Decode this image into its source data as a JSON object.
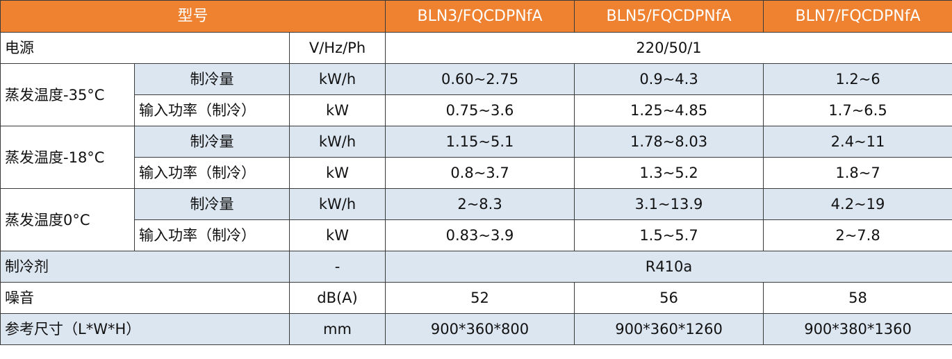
{
  "header": {
    "model_label": "型号",
    "models": [
      "BLN3/FQCDPNfA",
      "BLN5/FQCDPNfA",
      "BLN7/FQCDPNfA"
    ]
  },
  "power": {
    "label": "电源",
    "unit": "V/Hz/Ph",
    "value": "220/50/1"
  },
  "groups": [
    {
      "label": "蒸发温度-35°C",
      "cooling": {
        "label": "制冷量",
        "unit": "kW/h",
        "values": [
          "0.60~2.75",
          "0.9~4.3",
          "1.2~6"
        ]
      },
      "input": {
        "label": "输入功率（制冷）",
        "unit": "kW",
        "values": [
          "0.75~3.6",
          "1.25~4.85",
          "1.7~6.5"
        ]
      }
    },
    {
      "label": "蒸发温度-18°C",
      "cooling": {
        "label": "制冷量",
        "unit": "kW/h",
        "values": [
          "1.15~5.1",
          "1.78~8.03",
          "2.4~11"
        ]
      },
      "input": {
        "label": "输入功率（制冷）",
        "unit": "kW",
        "values": [
          "0.8~3.7",
          "1.3~5.2",
          "1.8~7"
        ]
      }
    },
    {
      "label": "蒸发温度0°C",
      "cooling": {
        "label": "制冷量",
        "unit": "kW/h",
        "values": [
          "2~8.3",
          "3.1~13.9",
          "4.2~19"
        ]
      },
      "input": {
        "label": "输入功率（制冷）",
        "unit": "kW",
        "values": [
          "0.83~3.9",
          "1.5~5.7",
          "2~7.8"
        ]
      }
    }
  ],
  "refrigerant": {
    "label": "制冷剂",
    "unit": "-",
    "value": "R410a"
  },
  "noise": {
    "label": "噪音",
    "unit": "dB(A)",
    "values": [
      "52",
      "56",
      "58"
    ]
  },
  "dimensions": {
    "label": "参考尺寸（L*W*H）",
    "unit": "mm",
    "values": [
      "900*360*800",
      "900*360*1260",
      "900*380*1360"
    ]
  },
  "colors": {
    "header_bg": "#EE8231",
    "stripe_bg": "#DCE6F1",
    "border": "#3a3a3a"
  }
}
